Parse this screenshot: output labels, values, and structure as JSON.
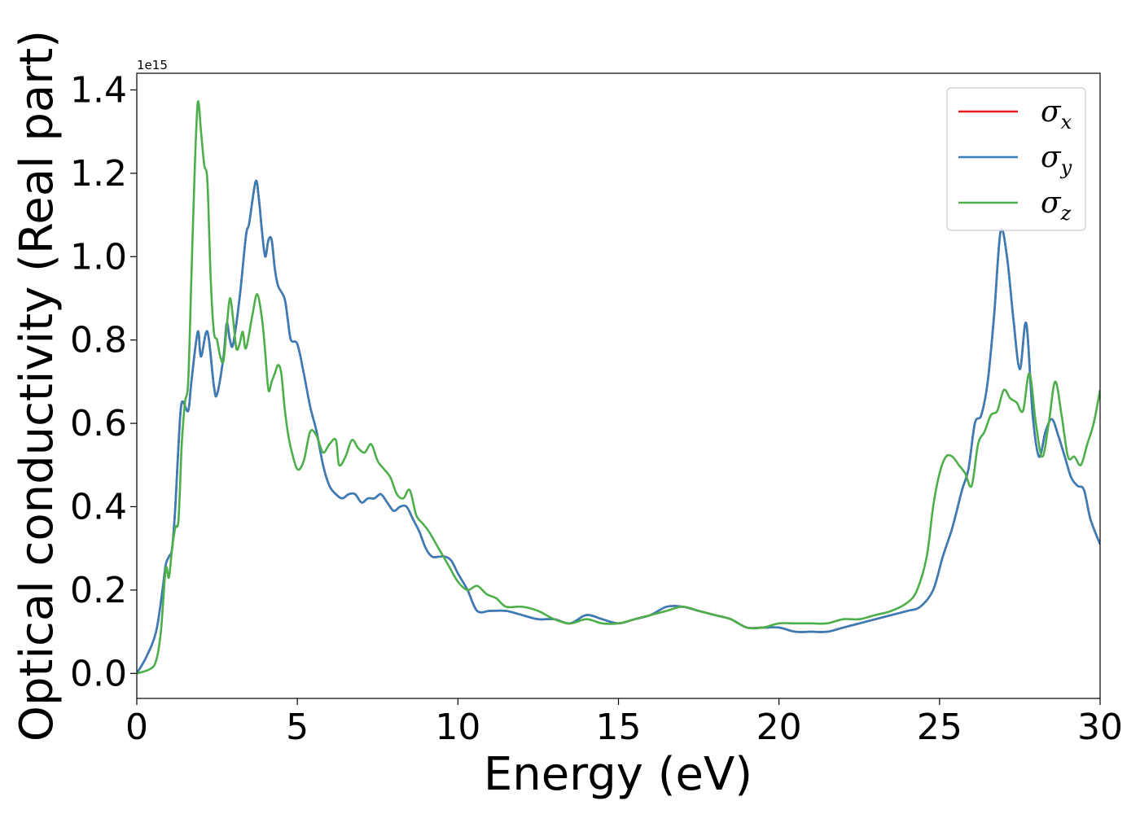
{
  "chart_data": {
    "type": "line",
    "title": "",
    "xlabel": "Energy (eV)",
    "ylabel": "Optical conductivity (Real part)",
    "y_offset_label": "1e15",
    "y_scale_factor": 1000000000000000.0,
    "xlim": [
      0,
      30
    ],
    "ylim": [
      -0.06,
      1.44
    ],
    "xticks": [
      0,
      5,
      10,
      15,
      20,
      25,
      30
    ],
    "xtick_labels": [
      "0",
      "5",
      "10",
      "15",
      "20",
      "25",
      "30"
    ],
    "yticks": [
      0.0,
      0.2,
      0.4,
      0.6,
      0.8,
      1.0,
      1.2,
      1.4
    ],
    "ytick_labels": [
      "0.0",
      "0.2",
      "0.4",
      "0.6",
      "0.8",
      "1.0",
      "1.2",
      "1.4"
    ],
    "grid": false,
    "legend_position": "top-right",
    "series": [
      {
        "name": "σx",
        "symbol": "σ",
        "subscript": "x",
        "color": "#e41a1c",
        "x": [
          0,
          0.3,
          0.6,
          0.8,
          0.9,
          1.0,
          1.1,
          1.2,
          1.3,
          1.4,
          1.6,
          1.7,
          1.9,
          2.0,
          2.2,
          2.4,
          2.5,
          2.7,
          2.8,
          2.9,
          3.0,
          3.2,
          3.4,
          3.5,
          3.7,
          3.8,
          3.9,
          4.0,
          4.1,
          4.2,
          4.3,
          4.4,
          4.6,
          4.7,
          4.8,
          5.0,
          5.2,
          5.4,
          5.6,
          5.8,
          6.0,
          6.2,
          6.4,
          6.6,
          6.8,
          7.0,
          7.2,
          7.4,
          7.6,
          7.8,
          8.0,
          8.2,
          8.4,
          8.6,
          8.8,
          9.0,
          9.2,
          9.4,
          9.6,
          9.8,
          10.0,
          10.3,
          10.6,
          11.0,
          11.5,
          12.0,
          12.5,
          13.0,
          13.5,
          14.0,
          14.5,
          15.0,
          15.5,
          16.0,
          16.5,
          17.0,
          17.5,
          18.0,
          18.5,
          19.0,
          19.5,
          20.0,
          20.5,
          21.0,
          21.5,
          22.0,
          22.5,
          23.0,
          23.5,
          24.0,
          24.4,
          24.8,
          25.1,
          25.4,
          25.7,
          25.9,
          26.1,
          26.3,
          26.5,
          26.7,
          26.9,
          27.1,
          27.3,
          27.5,
          27.7,
          27.9,
          28.1,
          28.3,
          28.5,
          28.7,
          28.9,
          29.1,
          29.3,
          29.5,
          29.7,
          30.0
        ],
        "y": [
          0.0,
          0.04,
          0.1,
          0.2,
          0.26,
          0.28,
          0.3,
          0.4,
          0.55,
          0.65,
          0.63,
          0.7,
          0.82,
          0.76,
          0.82,
          0.69,
          0.67,
          0.76,
          0.84,
          0.8,
          0.79,
          0.9,
          1.05,
          1.08,
          1.18,
          1.14,
          1.06,
          1.0,
          1.04,
          1.04,
          0.97,
          0.93,
          0.9,
          0.85,
          0.8,
          0.79,
          0.72,
          0.64,
          0.58,
          0.5,
          0.45,
          0.43,
          0.42,
          0.43,
          0.43,
          0.41,
          0.42,
          0.42,
          0.43,
          0.41,
          0.39,
          0.4,
          0.4,
          0.37,
          0.34,
          0.3,
          0.28,
          0.28,
          0.28,
          0.27,
          0.24,
          0.2,
          0.15,
          0.15,
          0.15,
          0.14,
          0.13,
          0.13,
          0.12,
          0.14,
          0.13,
          0.12,
          0.13,
          0.14,
          0.16,
          0.16,
          0.15,
          0.14,
          0.13,
          0.11,
          0.11,
          0.11,
          0.1,
          0.1,
          0.1,
          0.11,
          0.12,
          0.13,
          0.14,
          0.15,
          0.16,
          0.2,
          0.28,
          0.35,
          0.44,
          0.49,
          0.6,
          0.62,
          0.7,
          0.86,
          1.06,
          1.0,
          0.85,
          0.73,
          0.84,
          0.62,
          0.52,
          0.58,
          0.61,
          0.57,
          0.52,
          0.47,
          0.45,
          0.44,
          0.37,
          0.31
        ]
      },
      {
        "name": "σy",
        "symbol": "σ",
        "subscript": "y",
        "color": "#377eb8",
        "x": [
          0,
          0.3,
          0.6,
          0.8,
          0.9,
          1.0,
          1.1,
          1.2,
          1.3,
          1.4,
          1.6,
          1.7,
          1.9,
          2.0,
          2.2,
          2.4,
          2.5,
          2.7,
          2.8,
          2.9,
          3.0,
          3.2,
          3.4,
          3.5,
          3.7,
          3.8,
          3.9,
          4.0,
          4.1,
          4.2,
          4.3,
          4.4,
          4.6,
          4.7,
          4.8,
          5.0,
          5.2,
          5.4,
          5.6,
          5.8,
          6.0,
          6.2,
          6.4,
          6.6,
          6.8,
          7.0,
          7.2,
          7.4,
          7.6,
          7.8,
          8.0,
          8.2,
          8.4,
          8.6,
          8.8,
          9.0,
          9.2,
          9.4,
          9.6,
          9.8,
          10.0,
          10.3,
          10.6,
          11.0,
          11.5,
          12.0,
          12.5,
          13.0,
          13.5,
          14.0,
          14.5,
          15.0,
          15.5,
          16.0,
          16.5,
          17.0,
          17.5,
          18.0,
          18.5,
          19.0,
          19.5,
          20.0,
          20.5,
          21.0,
          21.5,
          22.0,
          22.5,
          23.0,
          23.5,
          24.0,
          24.4,
          24.8,
          25.1,
          25.4,
          25.7,
          25.9,
          26.1,
          26.3,
          26.5,
          26.7,
          26.9,
          27.1,
          27.3,
          27.5,
          27.7,
          27.9,
          28.1,
          28.3,
          28.5,
          28.7,
          28.9,
          29.1,
          29.3,
          29.5,
          29.7,
          30.0
        ],
        "y": [
          0.0,
          0.04,
          0.1,
          0.2,
          0.26,
          0.28,
          0.3,
          0.4,
          0.55,
          0.65,
          0.63,
          0.7,
          0.82,
          0.76,
          0.82,
          0.69,
          0.67,
          0.76,
          0.84,
          0.8,
          0.79,
          0.9,
          1.05,
          1.08,
          1.18,
          1.14,
          1.06,
          1.0,
          1.04,
          1.04,
          0.97,
          0.93,
          0.9,
          0.85,
          0.8,
          0.79,
          0.72,
          0.64,
          0.58,
          0.5,
          0.45,
          0.43,
          0.42,
          0.43,
          0.43,
          0.41,
          0.42,
          0.42,
          0.43,
          0.41,
          0.39,
          0.4,
          0.4,
          0.37,
          0.34,
          0.3,
          0.28,
          0.28,
          0.28,
          0.27,
          0.24,
          0.2,
          0.15,
          0.15,
          0.15,
          0.14,
          0.13,
          0.13,
          0.12,
          0.14,
          0.13,
          0.12,
          0.13,
          0.14,
          0.16,
          0.16,
          0.15,
          0.14,
          0.13,
          0.11,
          0.11,
          0.11,
          0.1,
          0.1,
          0.1,
          0.11,
          0.12,
          0.13,
          0.14,
          0.15,
          0.16,
          0.2,
          0.28,
          0.35,
          0.44,
          0.49,
          0.6,
          0.62,
          0.7,
          0.86,
          1.06,
          1.0,
          0.85,
          0.73,
          0.84,
          0.62,
          0.52,
          0.58,
          0.61,
          0.57,
          0.52,
          0.47,
          0.45,
          0.44,
          0.37,
          0.31
        ]
      },
      {
        "name": "σz",
        "symbol": "σ",
        "subscript": "z",
        "color": "#4daf4a",
        "x": [
          0,
          0.4,
          0.6,
          0.75,
          0.9,
          1.0,
          1.1,
          1.2,
          1.3,
          1.4,
          1.5,
          1.6,
          1.7,
          1.8,
          1.9,
          2.0,
          2.1,
          2.2,
          2.3,
          2.4,
          2.5,
          2.6,
          2.7,
          2.8,
          2.9,
          3.0,
          3.1,
          3.2,
          3.3,
          3.4,
          3.6,
          3.75,
          3.9,
          4.0,
          4.1,
          4.2,
          4.3,
          4.4,
          4.5,
          4.6,
          4.7,
          4.8,
          5.0,
          5.2,
          5.4,
          5.6,
          5.8,
          6.0,
          6.2,
          6.3,
          6.5,
          6.7,
          6.9,
          7.1,
          7.3,
          7.5,
          7.7,
          7.9,
          8.1,
          8.3,
          8.5,
          8.7,
          8.9,
          9.1,
          9.4,
          9.7,
          10.0,
          10.3,
          10.6,
          10.9,
          11.2,
          11.5,
          12.0,
          12.5,
          13.0,
          13.5,
          14.0,
          14.5,
          15.0,
          15.5,
          16.0,
          16.5,
          17.0,
          17.5,
          18.0,
          18.5,
          19.0,
          19.5,
          20.0,
          20.5,
          21.0,
          21.5,
          22.0,
          22.5,
          23.0,
          23.5,
          24.0,
          24.3,
          24.6,
          24.8,
          25.0,
          25.2,
          25.4,
          25.6,
          25.8,
          26.0,
          26.2,
          26.4,
          26.6,
          26.8,
          27.0,
          27.2,
          27.4,
          27.6,
          27.8,
          28.0,
          28.2,
          28.4,
          28.6,
          28.8,
          29.0,
          29.2,
          29.4,
          29.6,
          29.8,
          30.0
        ],
        "y": [
          0.0,
          0.01,
          0.03,
          0.1,
          0.25,
          0.23,
          0.3,
          0.35,
          0.37,
          0.55,
          0.65,
          0.7,
          0.95,
          1.2,
          1.37,
          1.3,
          1.22,
          1.18,
          0.95,
          0.82,
          0.8,
          0.76,
          0.75,
          0.83,
          0.9,
          0.85,
          0.78,
          0.79,
          0.82,
          0.78,
          0.86,
          0.91,
          0.85,
          0.77,
          0.68,
          0.7,
          0.72,
          0.74,
          0.72,
          0.64,
          0.58,
          0.54,
          0.49,
          0.51,
          0.58,
          0.57,
          0.53,
          0.55,
          0.56,
          0.5,
          0.52,
          0.56,
          0.54,
          0.53,
          0.55,
          0.51,
          0.49,
          0.47,
          0.43,
          0.42,
          0.44,
          0.38,
          0.36,
          0.34,
          0.3,
          0.26,
          0.22,
          0.2,
          0.21,
          0.19,
          0.18,
          0.16,
          0.16,
          0.15,
          0.13,
          0.12,
          0.13,
          0.12,
          0.12,
          0.13,
          0.14,
          0.15,
          0.16,
          0.15,
          0.14,
          0.13,
          0.11,
          0.11,
          0.12,
          0.12,
          0.12,
          0.12,
          0.13,
          0.13,
          0.14,
          0.15,
          0.17,
          0.2,
          0.28,
          0.4,
          0.48,
          0.52,
          0.52,
          0.5,
          0.48,
          0.45,
          0.55,
          0.58,
          0.62,
          0.63,
          0.68,
          0.66,
          0.65,
          0.63,
          0.72,
          0.6,
          0.52,
          0.6,
          0.7,
          0.62,
          0.52,
          0.52,
          0.5,
          0.55,
          0.6,
          0.68
        ]
      }
    ]
  }
}
